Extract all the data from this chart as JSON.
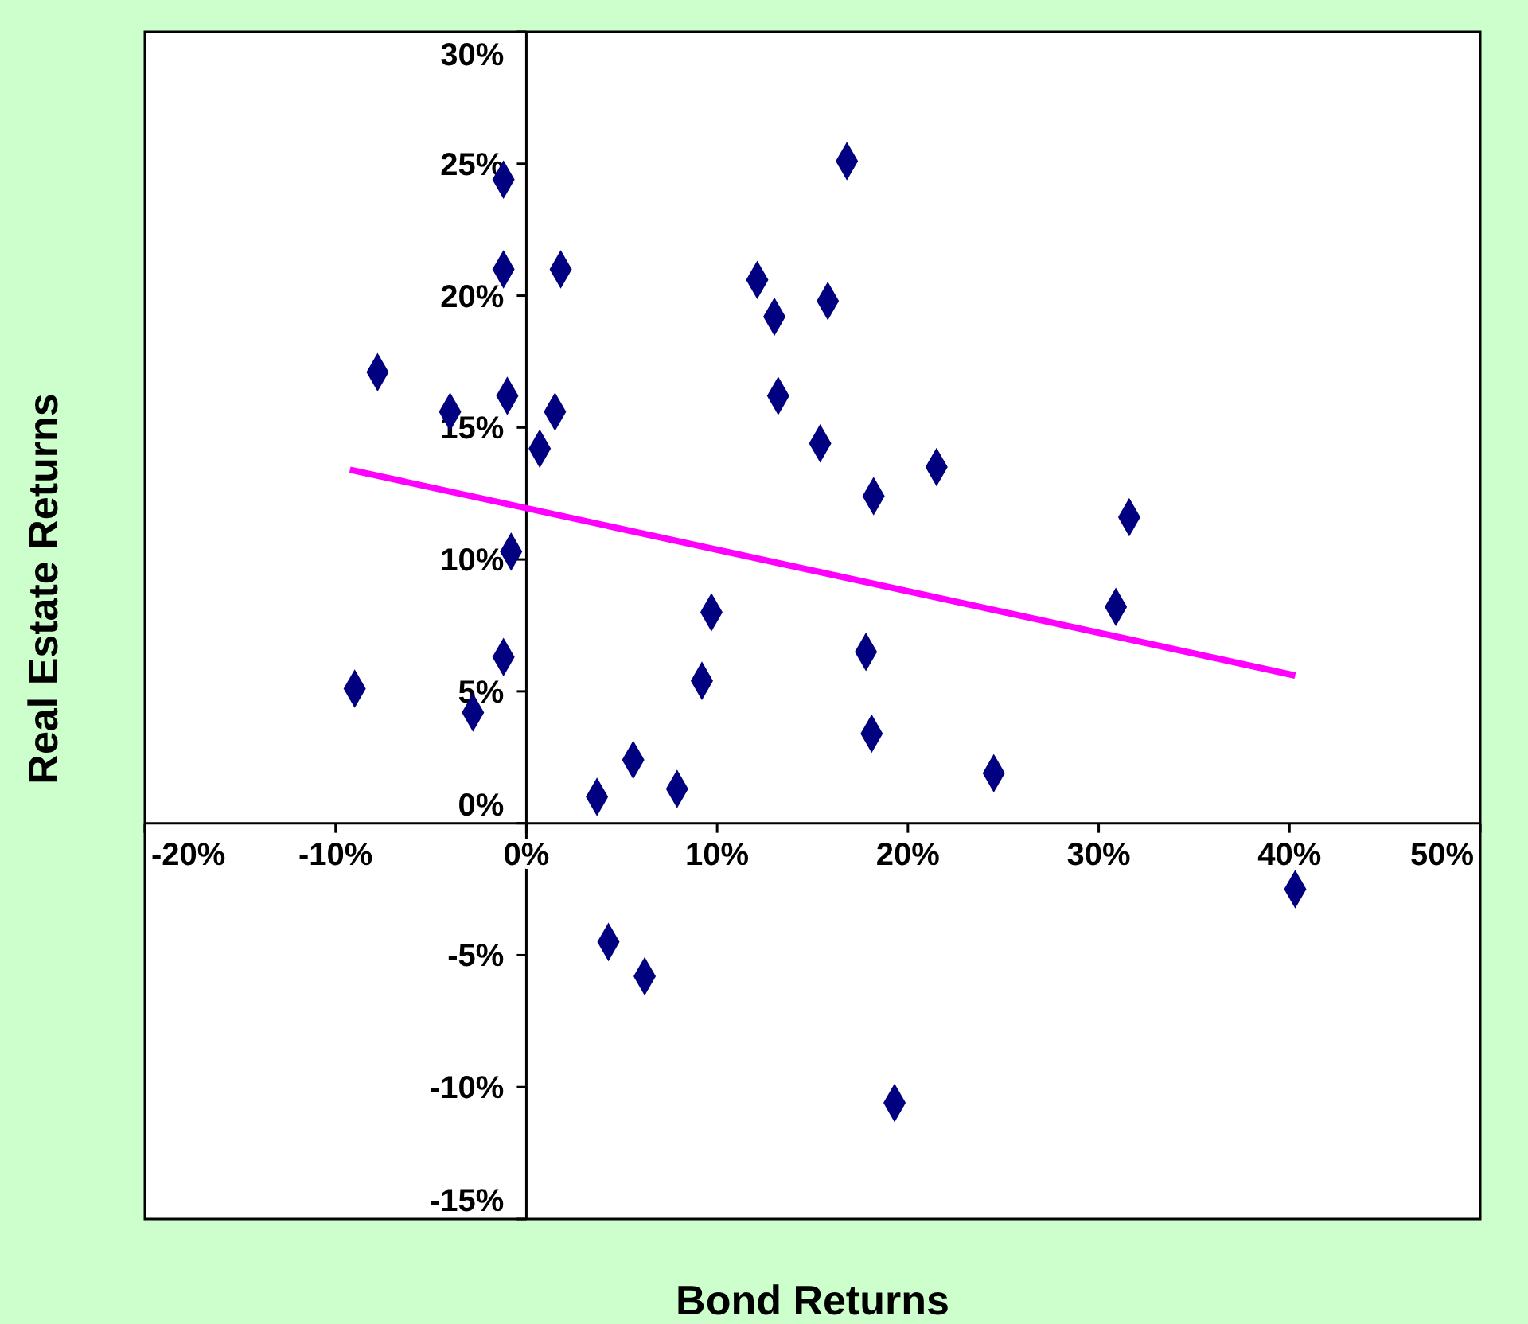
{
  "chart_data": {
    "type": "scatter",
    "xlabel": "Bond Returns",
    "ylabel": "Real Estate Returns",
    "xlim": [
      -20,
      50
    ],
    "ylim": [
      -15,
      30
    ],
    "xticks": [
      {
        "value": -20,
        "label": "-20%"
      },
      {
        "value": -10,
        "label": "-10%"
      },
      {
        "value": 0,
        "label": "0%"
      },
      {
        "value": 10,
        "label": "10%"
      },
      {
        "value": 20,
        "label": "20%"
      },
      {
        "value": 30,
        "label": "30%"
      },
      {
        "value": 40,
        "label": "40%"
      },
      {
        "value": 50,
        "label": "50%"
      }
    ],
    "yticks": [
      {
        "value": -15,
        "label": "-15%"
      },
      {
        "value": -10,
        "label": "-10%"
      },
      {
        "value": -5,
        "label": "-5%"
      },
      {
        "value": 0,
        "label": "0%"
      },
      {
        "value": 5,
        "label": "5%"
      },
      {
        "value": 10,
        "label": "10%"
      },
      {
        "value": 15,
        "label": "15%"
      },
      {
        "value": 20,
        "label": "20%"
      },
      {
        "value": 25,
        "label": "25%"
      },
      {
        "value": 30,
        "label": "30%"
      }
    ],
    "series": [
      {
        "marker": "diamond",
        "color": "#000080",
        "x": [
          -1.2,
          16.8,
          -1.2,
          1.8,
          12.1,
          15.8,
          13.0,
          -7.8,
          -4.0,
          -1.0,
          1.5,
          13.2,
          0.7,
          15.4,
          21.5,
          18.2,
          31.6,
          -0.8,
          9.7,
          30.9,
          -1.2,
          17.8,
          -9.0,
          9.2,
          -2.8,
          18.1,
          5.6,
          24.5,
          7.9,
          3.7,
          40.3,
          4.3,
          6.2,
          19.3
        ],
        "values": [
          24.4,
          25.1,
          21.0,
          21.0,
          20.6,
          19.8,
          19.2,
          17.1,
          15.6,
          16.2,
          15.6,
          16.2,
          14.2,
          14.4,
          13.5,
          12.4,
          11.6,
          10.3,
          8.0,
          8.2,
          6.3,
          6.5,
          5.1,
          5.4,
          4.2,
          3.4,
          2.4,
          1.9,
          1.3,
          1.0,
          -2.5,
          -4.5,
          -5.8,
          -10.6
        ]
      },
      {
        "type": "line",
        "color": "#ff00ff",
        "x": [
          -9.25,
          40.3
        ],
        "values": [
          13.4,
          5.6
        ]
      }
    ]
  }
}
